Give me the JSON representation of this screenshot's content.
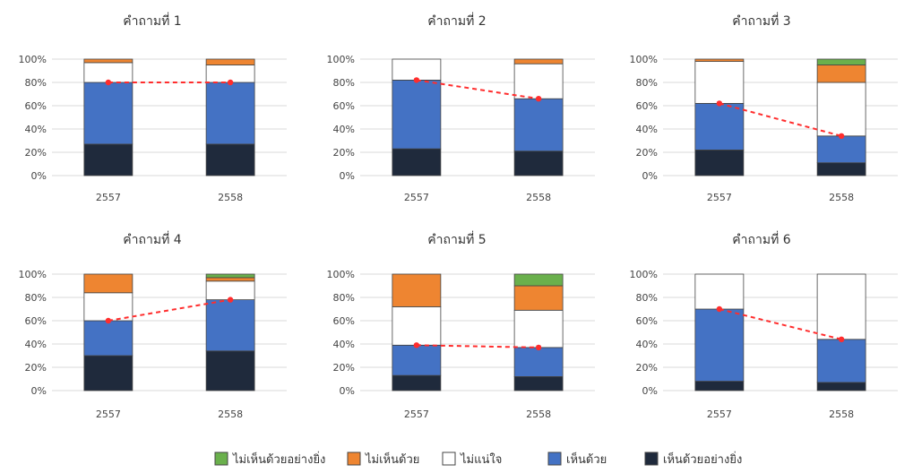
{
  "colors": {
    "ไม่เห็นด้วยอย่างยิ่ง": "#6ab04c",
    "ไม่เห็นด้วย": "#ee8531",
    "ไม่แน่ใจ": "#ffffff",
    "เห็นด้วย": "#4472c4",
    "เห็นด้วยอย่างยิ่ง": "#1f2a3c",
    "trend": "#ff2d2d",
    "grid": "#d9d9d9",
    "bar_stroke": "#444444"
  },
  "legend": [
    {
      "label": "ไม่เห็นด้วยอย่างยิ่ง",
      "color": "#6ab04c"
    },
    {
      "label": "ไม่เห็นด้วย",
      "color": "#ee8531"
    },
    {
      "label": "ไม่แน่ใจ",
      "color": "#ffffff"
    },
    {
      "label": "เห็นด้วย",
      "color": "#4472c4"
    },
    {
      "label": "เห็นด้วยอย่างยิ่ง",
      "color": "#1f2a3c"
    }
  ],
  "chart_data": [
    {
      "type": "bar",
      "stacked": true,
      "title": "คำถามที่ 1",
      "categories": [
        "2557",
        "2558"
      ],
      "yticks": [
        "0%",
        "20%",
        "40%",
        "60%",
        "80%",
        "100%"
      ],
      "ylim": [
        0,
        100
      ],
      "series": [
        {
          "name": "เห็นด้วยอย่างยิ่ง",
          "values": [
            27,
            27
          ]
        },
        {
          "name": "เห็นด้วย",
          "values": [
            53,
            53
          ]
        },
        {
          "name": "ไม่แน่ใจ",
          "values": [
            17,
            15
          ]
        },
        {
          "name": "ไม่เห็นด้วย",
          "values": [
            3,
            5
          ]
        },
        {
          "name": "ไม่เห็นด้วยอย่างยิ่ง",
          "values": [
            0,
            0
          ]
        }
      ],
      "trend": [
        80,
        80
      ]
    },
    {
      "type": "bar",
      "stacked": true,
      "title": "คำถามที่ 2",
      "categories": [
        "2557",
        "2558"
      ],
      "yticks": [
        "0%",
        "20%",
        "40%",
        "60%",
        "80%",
        "100%"
      ],
      "ylim": [
        0,
        100
      ],
      "series": [
        {
          "name": "เห็นด้วยอย่างยิ่ง",
          "values": [
            23,
            21
          ]
        },
        {
          "name": "เห็นด้วย",
          "values": [
            59,
            45
          ]
        },
        {
          "name": "ไม่แน่ใจ",
          "values": [
            18,
            30
          ]
        },
        {
          "name": "ไม่เห็นด้วย",
          "values": [
            0,
            4
          ]
        },
        {
          "name": "ไม่เห็นด้วยอย่างยิ่ง",
          "values": [
            0,
            0
          ]
        }
      ],
      "trend": [
        82,
        66
      ]
    },
    {
      "type": "bar",
      "stacked": true,
      "title": "คำถามที่ 3",
      "categories": [
        "2557",
        "2558"
      ],
      "yticks": [
        "0%",
        "20%",
        "40%",
        "60%",
        "80%",
        "100%"
      ],
      "ylim": [
        0,
        100
      ],
      "series": [
        {
          "name": "เห็นด้วยอย่างยิ่ง",
          "values": [
            22,
            11
          ]
        },
        {
          "name": "เห็นด้วย",
          "values": [
            40,
            23
          ]
        },
        {
          "name": "ไม่แน่ใจ",
          "values": [
            36,
            46
          ]
        },
        {
          "name": "ไม่เห็นด้วย",
          "values": [
            2,
            15
          ]
        },
        {
          "name": "ไม่เห็นด้วยอย่างยิ่ง",
          "values": [
            0,
            5
          ]
        }
      ],
      "trend": [
        62,
        34
      ]
    },
    {
      "type": "bar",
      "stacked": true,
      "title": "คำถามที่ 4",
      "categories": [
        "2557",
        "2558"
      ],
      "yticks": [
        "0%",
        "20%",
        "40%",
        "60%",
        "80%",
        "100%"
      ],
      "ylim": [
        0,
        100
      ],
      "series": [
        {
          "name": "เห็นด้วยอย่างยิ่ง",
          "values": [
            30,
            34
          ]
        },
        {
          "name": "เห็นด้วย",
          "values": [
            30,
            44
          ]
        },
        {
          "name": "ไม่แน่ใจ",
          "values": [
            24,
            16
          ]
        },
        {
          "name": "ไม่เห็นด้วย",
          "values": [
            16,
            3
          ]
        },
        {
          "name": "ไม่เห็นด้วยอย่างยิ่ง",
          "values": [
            0,
            3
          ]
        }
      ],
      "trend": [
        60,
        78
      ]
    },
    {
      "type": "bar",
      "stacked": true,
      "title": "คำถามที่ 5",
      "categories": [
        "2557",
        "2558"
      ],
      "yticks": [
        "0%",
        "20%",
        "40%",
        "60%",
        "80%",
        "100%"
      ],
      "ylim": [
        0,
        100
      ],
      "series": [
        {
          "name": "เห็นด้วยอย่างยิ่ง",
          "values": [
            13,
            12
          ]
        },
        {
          "name": "เห็นด้วย",
          "values": [
            26,
            25
          ]
        },
        {
          "name": "ไม่แน่ใจ",
          "values": [
            33,
            32
          ]
        },
        {
          "name": "ไม่เห็นด้วย",
          "values": [
            28,
            21
          ]
        },
        {
          "name": "ไม่เห็นด้วยอย่างยิ่ง",
          "values": [
            0,
            10
          ]
        }
      ],
      "trend": [
        39,
        37
      ]
    },
    {
      "type": "bar",
      "stacked": true,
      "title": "คำถามที่ 6",
      "categories": [
        "2557",
        "2558"
      ],
      "yticks": [
        "0%",
        "20%",
        "40%",
        "60%",
        "80%",
        "100%"
      ],
      "ylim": [
        0,
        100
      ],
      "series": [
        {
          "name": "เห็นด้วยอย่างยิ่ง",
          "values": [
            8,
            7
          ]
        },
        {
          "name": "เห็นด้วย",
          "values": [
            62,
            37
          ]
        },
        {
          "name": "ไม่แน่ใจ",
          "values": [
            30,
            56
          ]
        },
        {
          "name": "ไม่เห็นด้วย",
          "values": [
            0,
            0
          ]
        },
        {
          "name": "ไม่เห็นด้วยอย่างยิ่ง",
          "values": [
            0,
            0
          ]
        }
      ],
      "trend": [
        70,
        44
      ]
    }
  ]
}
